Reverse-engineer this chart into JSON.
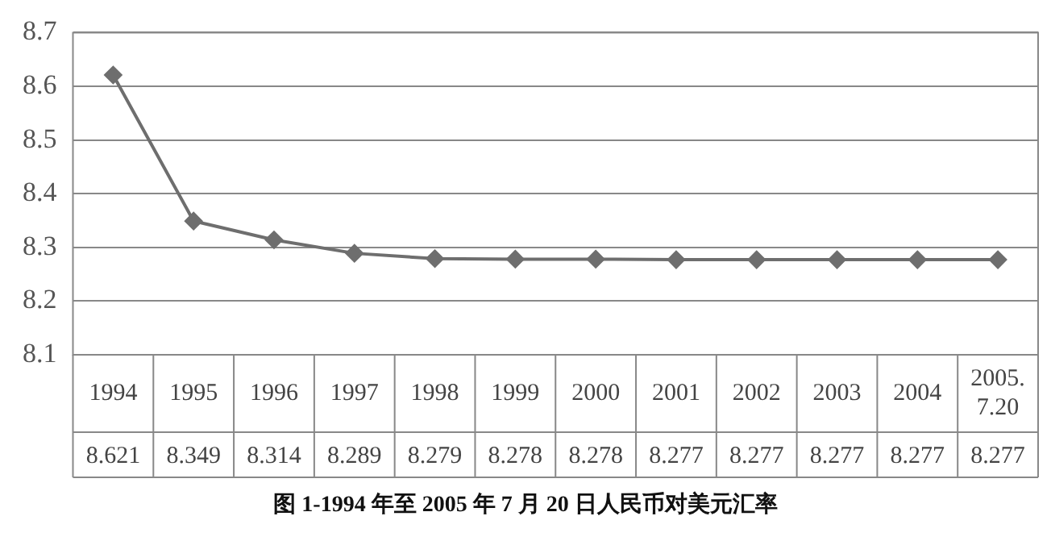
{
  "chart_data": {
    "type": "line",
    "title": "图 1-1994 年至 2005 年 7 月 20 日人民币对美元汇率",
    "categories": [
      "1994",
      "1995",
      "1996",
      "1997",
      "1998",
      "1999",
      "2000",
      "2001",
      "2002",
      "2003",
      "2004",
      "2005.7.20"
    ],
    "values": [
      8.621,
      8.349,
      8.314,
      8.289,
      8.279,
      8.278,
      8.278,
      8.277,
      8.277,
      8.277,
      8.277,
      8.277
    ],
    "color": "#6e6e6e",
    "ylim": [
      8.1,
      8.7
    ],
    "yticks": [
      8.1,
      8.2,
      8.3,
      8.4,
      8.5,
      8.6,
      8.7
    ],
    "grid": "y",
    "legend": false,
    "marker": "diamond",
    "line_style": "solid",
    "data_labels": true
  }
}
